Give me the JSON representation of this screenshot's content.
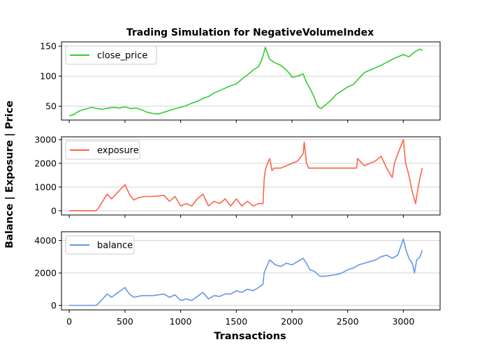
{
  "chart_data": {
    "type": "line",
    "title": "Trading Simulation for NegativeVolumeIndex",
    "xlabel": "Transactions",
    "ylabel": "Balance | Exposure | Price",
    "xlim": [
      -70,
      3330
    ],
    "xticks": [
      0,
      500,
      1000,
      1500,
      2000,
      2500,
      3000
    ],
    "grid": "horizontal",
    "legend_position": "upper-left",
    "panels": [
      {
        "name": "close_price",
        "color": "#32cd32",
        "ylim": [
          27,
          157
        ],
        "yticks": [
          50,
          100,
          150
        ],
        "points": [
          [
            0,
            34
          ],
          [
            40,
            36
          ],
          [
            80,
            41
          ],
          [
            120,
            44
          ],
          [
            160,
            46
          ],
          [
            200,
            48
          ],
          [
            250,
            46
          ],
          [
            300,
            45
          ],
          [
            350,
            47
          ],
          [
            400,
            48
          ],
          [
            450,
            47
          ],
          [
            500,
            49
          ],
          [
            550,
            46
          ],
          [
            600,
            47
          ],
          [
            650,
            44
          ],
          [
            700,
            40
          ],
          [
            750,
            38
          ],
          [
            800,
            37
          ],
          [
            850,
            40
          ],
          [
            900,
            43
          ],
          [
            950,
            46
          ],
          [
            1000,
            48
          ],
          [
            1050,
            51
          ],
          [
            1100,
            55
          ],
          [
            1150,
            58
          ],
          [
            1200,
            63
          ],
          [
            1250,
            66
          ],
          [
            1300,
            72
          ],
          [
            1350,
            76
          ],
          [
            1400,
            80
          ],
          [
            1450,
            84
          ],
          [
            1500,
            87
          ],
          [
            1550,
            95
          ],
          [
            1600,
            102
          ],
          [
            1650,
            110
          ],
          [
            1700,
            116
          ],
          [
            1730,
            128
          ],
          [
            1750,
            140
          ],
          [
            1760,
            148
          ],
          [
            1780,
            138
          ],
          [
            1800,
            128
          ],
          [
            1850,
            122
          ],
          [
            1900,
            118
          ],
          [
            1950,
            110
          ],
          [
            1980,
            104
          ],
          [
            2000,
            98
          ],
          [
            2050,
            100
          ],
          [
            2100,
            104
          ],
          [
            2130,
            90
          ],
          [
            2160,
            80
          ],
          [
            2200,
            65
          ],
          [
            2230,
            50
          ],
          [
            2260,
            46
          ],
          [
            2300,
            52
          ],
          [
            2350,
            60
          ],
          [
            2400,
            70
          ],
          [
            2450,
            76
          ],
          [
            2500,
            82
          ],
          [
            2550,
            86
          ],
          [
            2600,
            96
          ],
          [
            2650,
            106
          ],
          [
            2700,
            110
          ],
          [
            2750,
            114
          ],
          [
            2800,
            118
          ],
          [
            2850,
            123
          ],
          [
            2900,
            128
          ],
          [
            2950,
            132
          ],
          [
            3000,
            136
          ],
          [
            3050,
            132
          ],
          [
            3100,
            140
          ],
          [
            3150,
            145
          ],
          [
            3170,
            142
          ]
        ]
      },
      {
        "name": "exposure",
        "color": "#ff6347",
        "ylim": [
          -180,
          3120
        ],
        "yticks": [
          0,
          1000,
          2000,
          3000
        ],
        "points": [
          [
            0,
            0
          ],
          [
            80,
            0
          ],
          [
            160,
            0
          ],
          [
            240,
            0
          ],
          [
            260,
            100
          ],
          [
            300,
            400
          ],
          [
            340,
            700
          ],
          [
            380,
            500
          ],
          [
            420,
            700
          ],
          [
            460,
            900
          ],
          [
            500,
            1100
          ],
          [
            540,
            700
          ],
          [
            580,
            450
          ],
          [
            620,
            550
          ],
          [
            680,
            600
          ],
          [
            740,
            600
          ],
          [
            800,
            620
          ],
          [
            850,
            650
          ],
          [
            900,
            400
          ],
          [
            950,
            600
          ],
          [
            1000,
            200
          ],
          [
            1050,
            300
          ],
          [
            1100,
            200
          ],
          [
            1150,
            500
          ],
          [
            1200,
            700
          ],
          [
            1250,
            200
          ],
          [
            1300,
            400
          ],
          [
            1350,
            300
          ],
          [
            1400,
            500
          ],
          [
            1450,
            200
          ],
          [
            1500,
            500
          ],
          [
            1550,
            200
          ],
          [
            1600,
            400
          ],
          [
            1650,
            200
          ],
          [
            1700,
            300
          ],
          [
            1740,
            300
          ],
          [
            1750,
            1300
          ],
          [
            1760,
            1700
          ],
          [
            1780,
            2000
          ],
          [
            1800,
            2200
          ],
          [
            1820,
            1700
          ],
          [
            1840,
            1800
          ],
          [
            1900,
            1800
          ],
          [
            1950,
            1900
          ],
          [
            2000,
            2000
          ],
          [
            2050,
            2100
          ],
          [
            2100,
            2400
          ],
          [
            2110,
            2900
          ],
          [
            2130,
            2000
          ],
          [
            2150,
            1800
          ],
          [
            2400,
            1800
          ],
          [
            2580,
            1800
          ],
          [
            2590,
            2200
          ],
          [
            2650,
            1900
          ],
          [
            2700,
            2000
          ],
          [
            2750,
            2100
          ],
          [
            2800,
            2300
          ],
          [
            2850,
            1800
          ],
          [
            2900,
            1400
          ],
          [
            2920,
            2000
          ],
          [
            2950,
            2400
          ],
          [
            3000,
            3000
          ],
          [
            3020,
            2000
          ],
          [
            3050,
            1500
          ],
          [
            3080,
            800
          ],
          [
            3110,
            300
          ],
          [
            3130,
            900
          ],
          [
            3150,
            1400
          ],
          [
            3170,
            1800
          ]
        ]
      },
      {
        "name": "balance",
        "color": "#6495ed",
        "ylim": [
          -280,
          4540
        ],
        "yticks": [
          0,
          2000,
          4000
        ],
        "points": [
          [
            0,
            0
          ],
          [
            80,
            0
          ],
          [
            160,
            0
          ],
          [
            240,
            0
          ],
          [
            260,
            100
          ],
          [
            300,
            400
          ],
          [
            340,
            700
          ],
          [
            380,
            500
          ],
          [
            420,
            700
          ],
          [
            460,
            900
          ],
          [
            500,
            1100
          ],
          [
            540,
            700
          ],
          [
            580,
            500
          ],
          [
            650,
            600
          ],
          [
            750,
            600
          ],
          [
            800,
            650
          ],
          [
            850,
            700
          ],
          [
            900,
            500
          ],
          [
            950,
            650
          ],
          [
            1000,
            300
          ],
          [
            1050,
            400
          ],
          [
            1100,
            300
          ],
          [
            1150,
            550
          ],
          [
            1200,
            800
          ],
          [
            1250,
            400
          ],
          [
            1300,
            600
          ],
          [
            1350,
            550
          ],
          [
            1400,
            700
          ],
          [
            1450,
            700
          ],
          [
            1500,
            900
          ],
          [
            1550,
            800
          ],
          [
            1600,
            1000
          ],
          [
            1650,
            900
          ],
          [
            1700,
            1100
          ],
          [
            1740,
            1300
          ],
          [
            1750,
            2000
          ],
          [
            1780,
            2500
          ],
          [
            1800,
            2800
          ],
          [
            1850,
            2500
          ],
          [
            1900,
            2400
          ],
          [
            1950,
            2600
          ],
          [
            2000,
            2500
          ],
          [
            2050,
            2700
          ],
          [
            2100,
            2900
          ],
          [
            2130,
            2600
          ],
          [
            2160,
            2200
          ],
          [
            2200,
            2100
          ],
          [
            2250,
            1800
          ],
          [
            2300,
            1800
          ],
          [
            2400,
            1900
          ],
          [
            2450,
            2000
          ],
          [
            2500,
            2200
          ],
          [
            2550,
            2300
          ],
          [
            2600,
            2500
          ],
          [
            2650,
            2600
          ],
          [
            2700,
            2700
          ],
          [
            2750,
            2800
          ],
          [
            2800,
            3000
          ],
          [
            2850,
            3100
          ],
          [
            2900,
            2900
          ],
          [
            2950,
            3100
          ],
          [
            3000,
            4100
          ],
          [
            3020,
            3500
          ],
          [
            3050,
            2900
          ],
          [
            3080,
            2600
          ],
          [
            3100,
            2000
          ],
          [
            3120,
            2800
          ],
          [
            3150,
            3000
          ],
          [
            3170,
            3400
          ]
        ]
      }
    ]
  }
}
